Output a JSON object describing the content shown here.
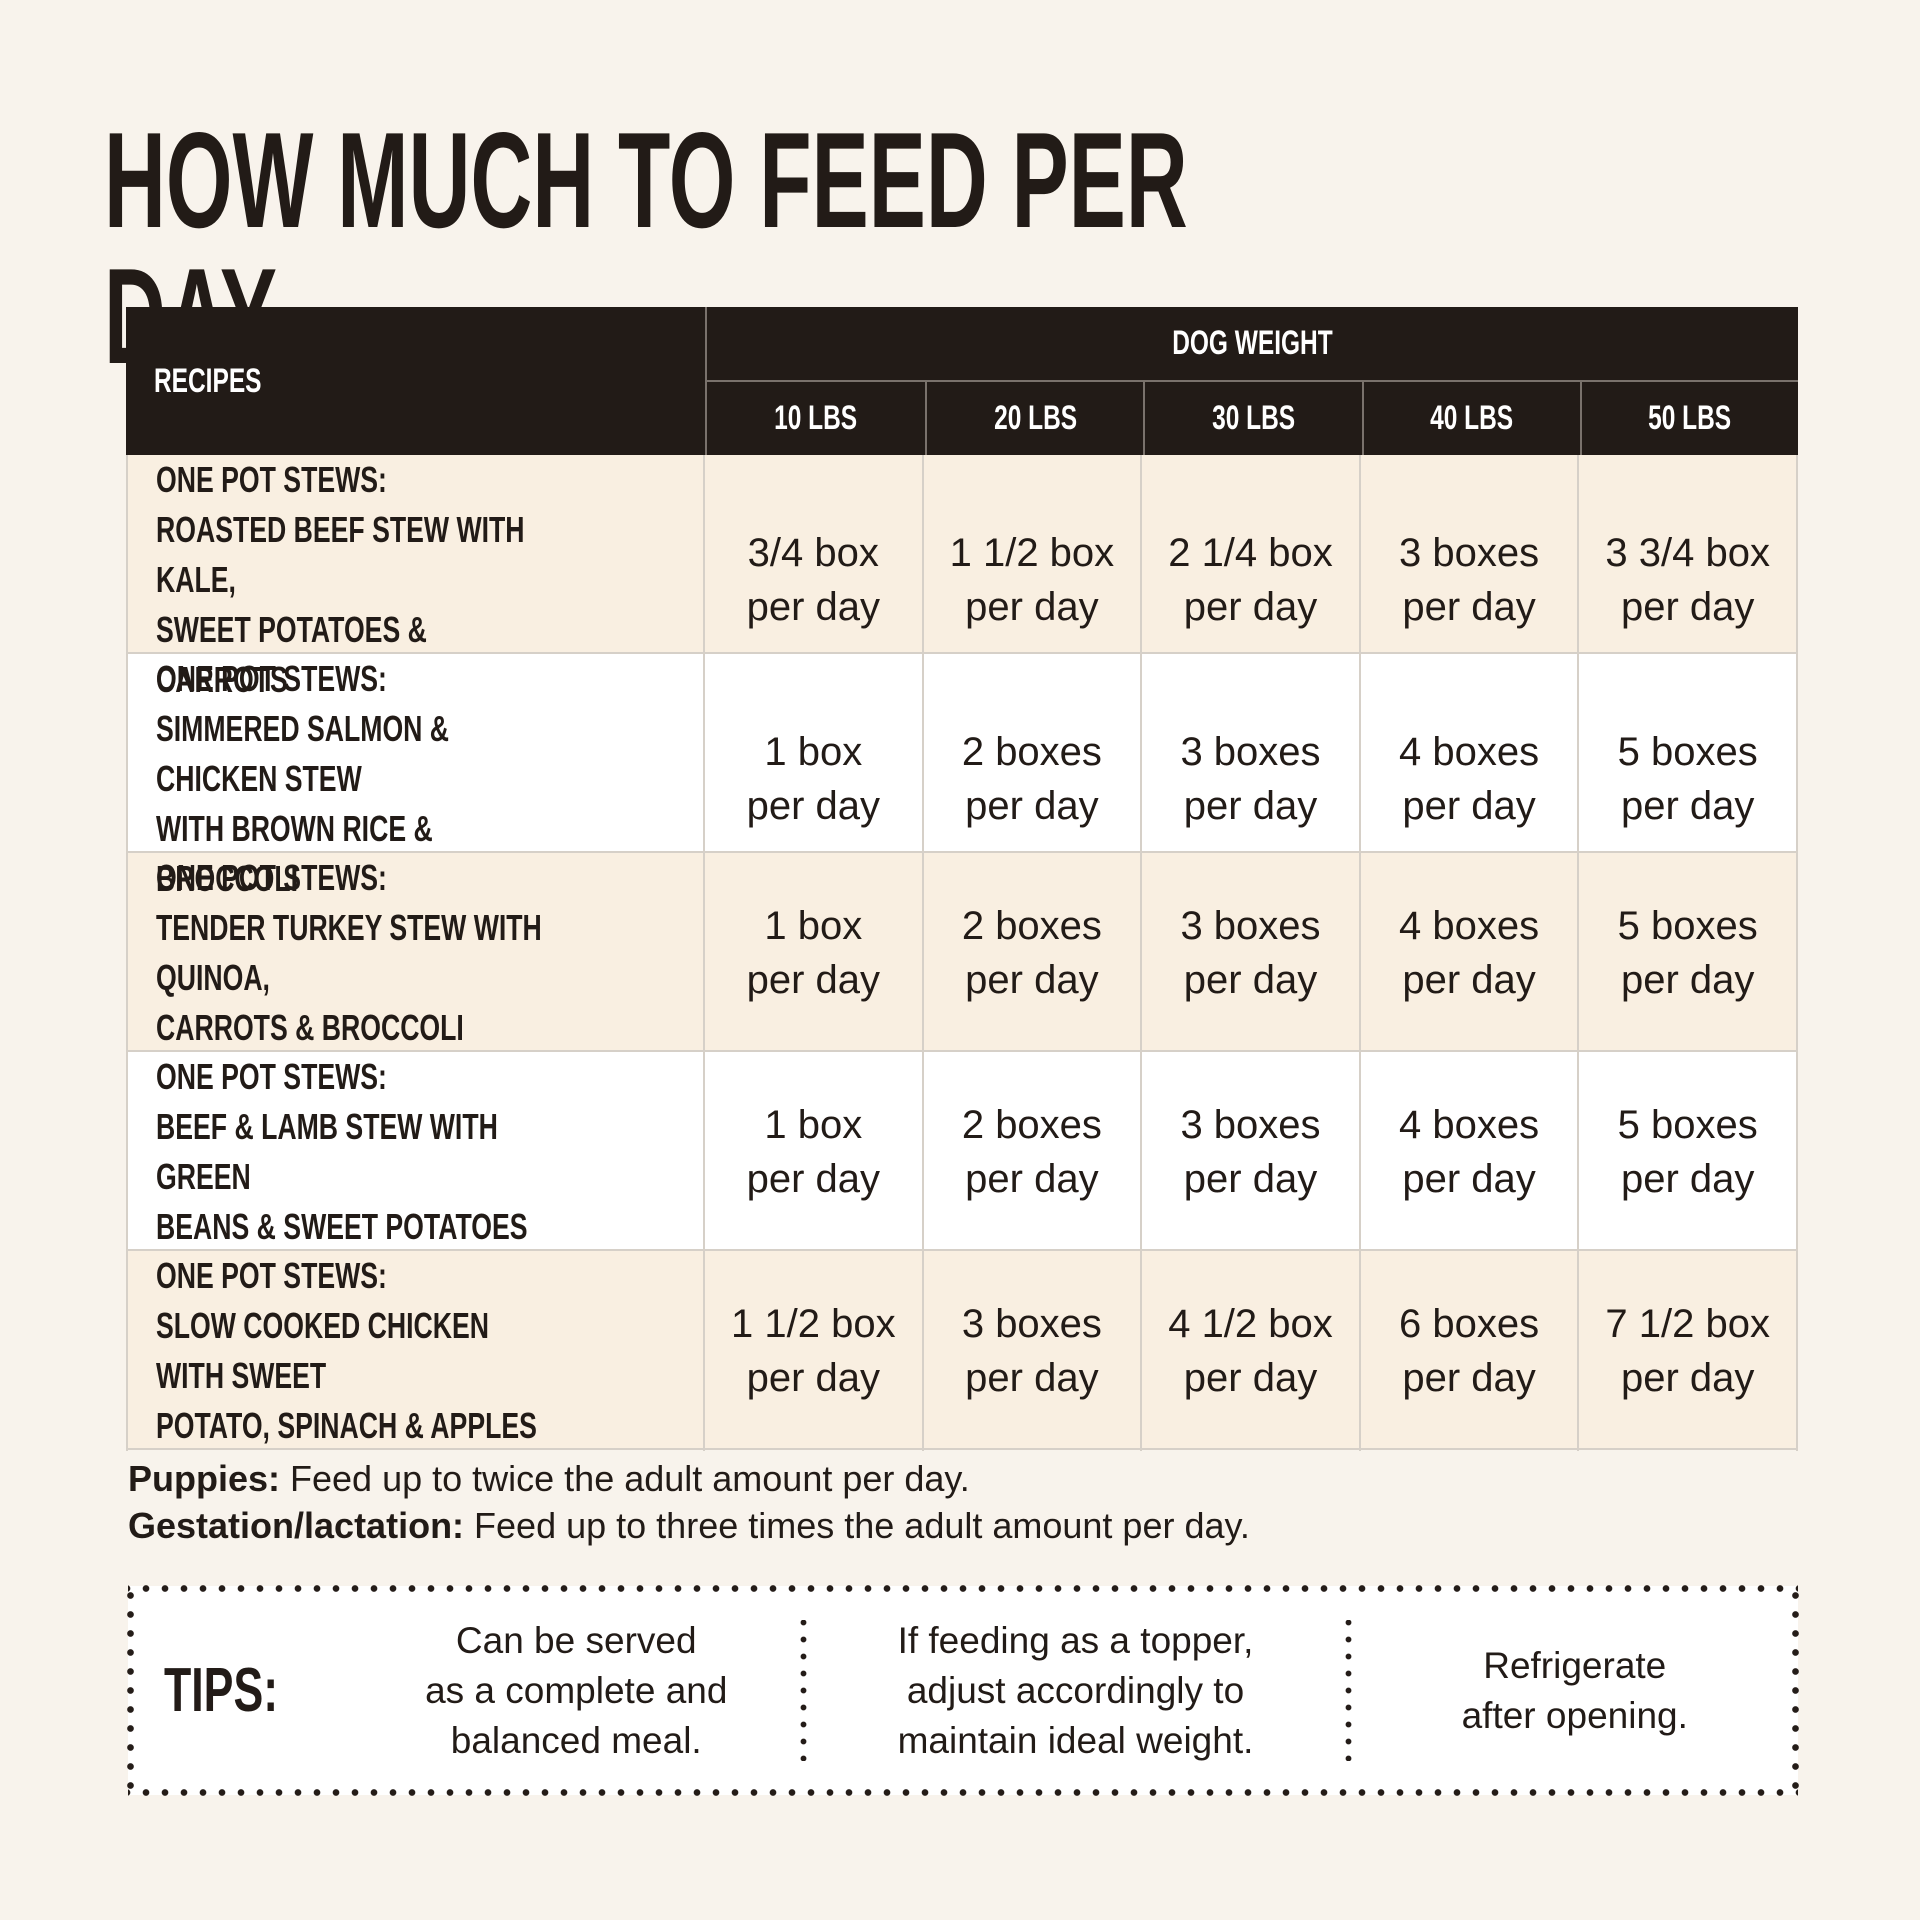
{
  "colors": {
    "page_background": "#f8f3ec",
    "header_background": "#221b17",
    "cream_row": "#f9efe1",
    "white_row": "#ffffff",
    "text": "#221b17",
    "divider_light": "#d6d0c8",
    "divider_header": "#7a726c"
  },
  "title": "HOW MUCH TO FEED PER DAY",
  "table": {
    "recipes_header": "RECIPES",
    "weight_group_header": "DOG WEIGHT",
    "weight_columns": [
      "10 LBS",
      "20 LBS",
      "30 LBS",
      "40 LBS",
      "50 LBS"
    ],
    "rows": [
      {
        "recipe": "ONE POT STEWS:\nROASTED BEEF STEW WITH KALE,\nSWEET POTATOES & CARROTS",
        "values": [
          "3/4 box\nper day",
          "1 1/2 box\nper day",
          "2 1/4 box\nper day",
          "3 boxes\nper day",
          "3 3/4 box\nper day"
        ]
      },
      {
        "recipe": "ONE POT STEWS:\nSIMMERED SALMON & CHICKEN STEW\nWITH BROWN RICE & BROCCOLI",
        "values": [
          "1 box\nper day",
          "2 boxes\nper day",
          "3 boxes\nper day",
          "4 boxes\nper day",
          "5 boxes\nper day"
        ]
      },
      {
        "recipe": "ONE POT STEWS:\nTENDER TURKEY STEW WITH QUINOA,\nCARROTS & BROCCOLI",
        "values": [
          "1 box\nper day",
          "2 boxes\nper day",
          "3 boxes\nper day",
          "4 boxes\nper day",
          "5 boxes\nper day"
        ]
      },
      {
        "recipe": "ONE POT STEWS:\nBEEF & LAMB STEW WITH GREEN\nBEANS & SWEET POTATOES",
        "values": [
          "1 box\nper day",
          "2 boxes\nper day",
          "3 boxes\nper day",
          "4 boxes\nper day",
          "5 boxes\nper day"
        ]
      },
      {
        "recipe": "ONE POT STEWS:\nSLOW COOKED CHICKEN WITH SWEET\nPOTATO, SPINACH & APPLES",
        "values": [
          "1 1/2 box\nper day",
          "3 boxes\nper day",
          "4 1/2 box\nper day",
          "6 boxes\nper day",
          "7 1/2 box\nper day"
        ]
      }
    ]
  },
  "notes": [
    {
      "label": "Puppies:",
      "text": " Feed up to twice the adult amount per day."
    },
    {
      "label": "Gestation/lactation:",
      "text": " Feed up to three times the adult amount per day."
    }
  ],
  "tips": {
    "label": "TIPS:",
    "items": [
      "Can be served\nas a complete and\nbalanced meal.",
      "If feeding as a topper,\nadjust accordingly to\nmaintain ideal weight.",
      "Refrigerate\nafter opening."
    ]
  }
}
